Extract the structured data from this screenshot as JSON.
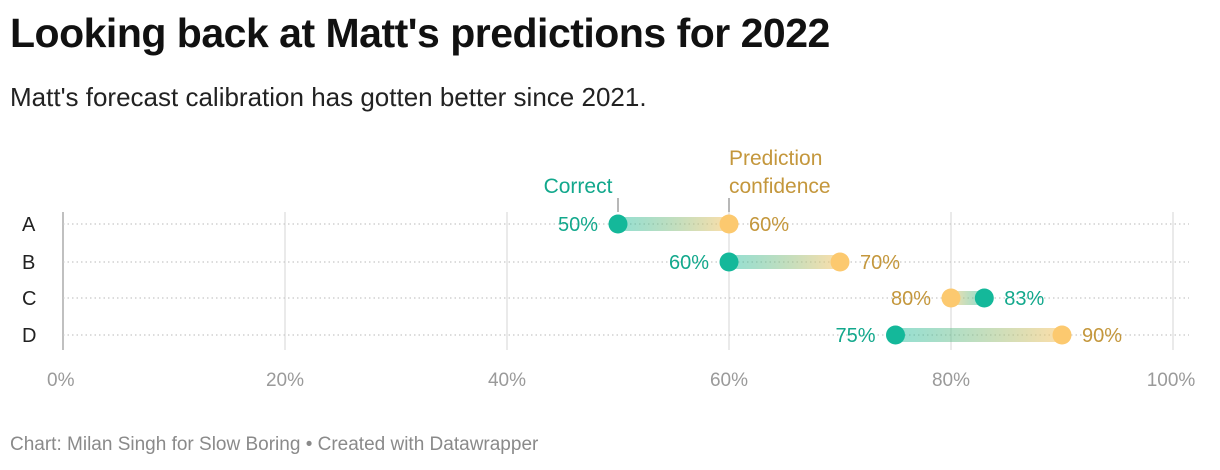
{
  "title": "Looking back at Matt's predictions for 2022",
  "subtitle": "Matt's forecast calibration has gotten better since 2021.",
  "footer": "Chart: Milan Singh for Slow Boring • Created with Datawrapper",
  "colors": {
    "correct": "#14b89a",
    "correct_text": "#12a88c",
    "confidence": "#fcc96f",
    "confidence_text": "#c4973c",
    "grid": "#dddddd",
    "row_line": "#c8c8c8",
    "tick_text": "#9a9a9a",
    "row_label": "#222222"
  },
  "chart_data": {
    "type": "dot-range",
    "xlim": [
      0,
      100
    ],
    "x_ticks": [
      0,
      20,
      40,
      60,
      80,
      100
    ],
    "x_tick_labels": [
      "0%",
      "20%",
      "40%",
      "60%",
      "80%",
      "100%"
    ],
    "grid": true,
    "categories": [
      "A",
      "B",
      "C",
      "D"
    ],
    "series": [
      {
        "name": "Correct",
        "values": [
          50,
          60,
          83,
          75
        ],
        "labels": [
          "50%",
          "60%",
          "83%",
          "75%"
        ]
      },
      {
        "name": "Prediction confidence",
        "values": [
          60,
          70,
          80,
          90
        ],
        "labels": [
          "60%",
          "70%",
          "80%",
          "90%"
        ]
      }
    ],
    "annotations": {
      "correct": "Correct",
      "confidence_line1": "Prediction",
      "confidence_line2": "confidence"
    }
  }
}
